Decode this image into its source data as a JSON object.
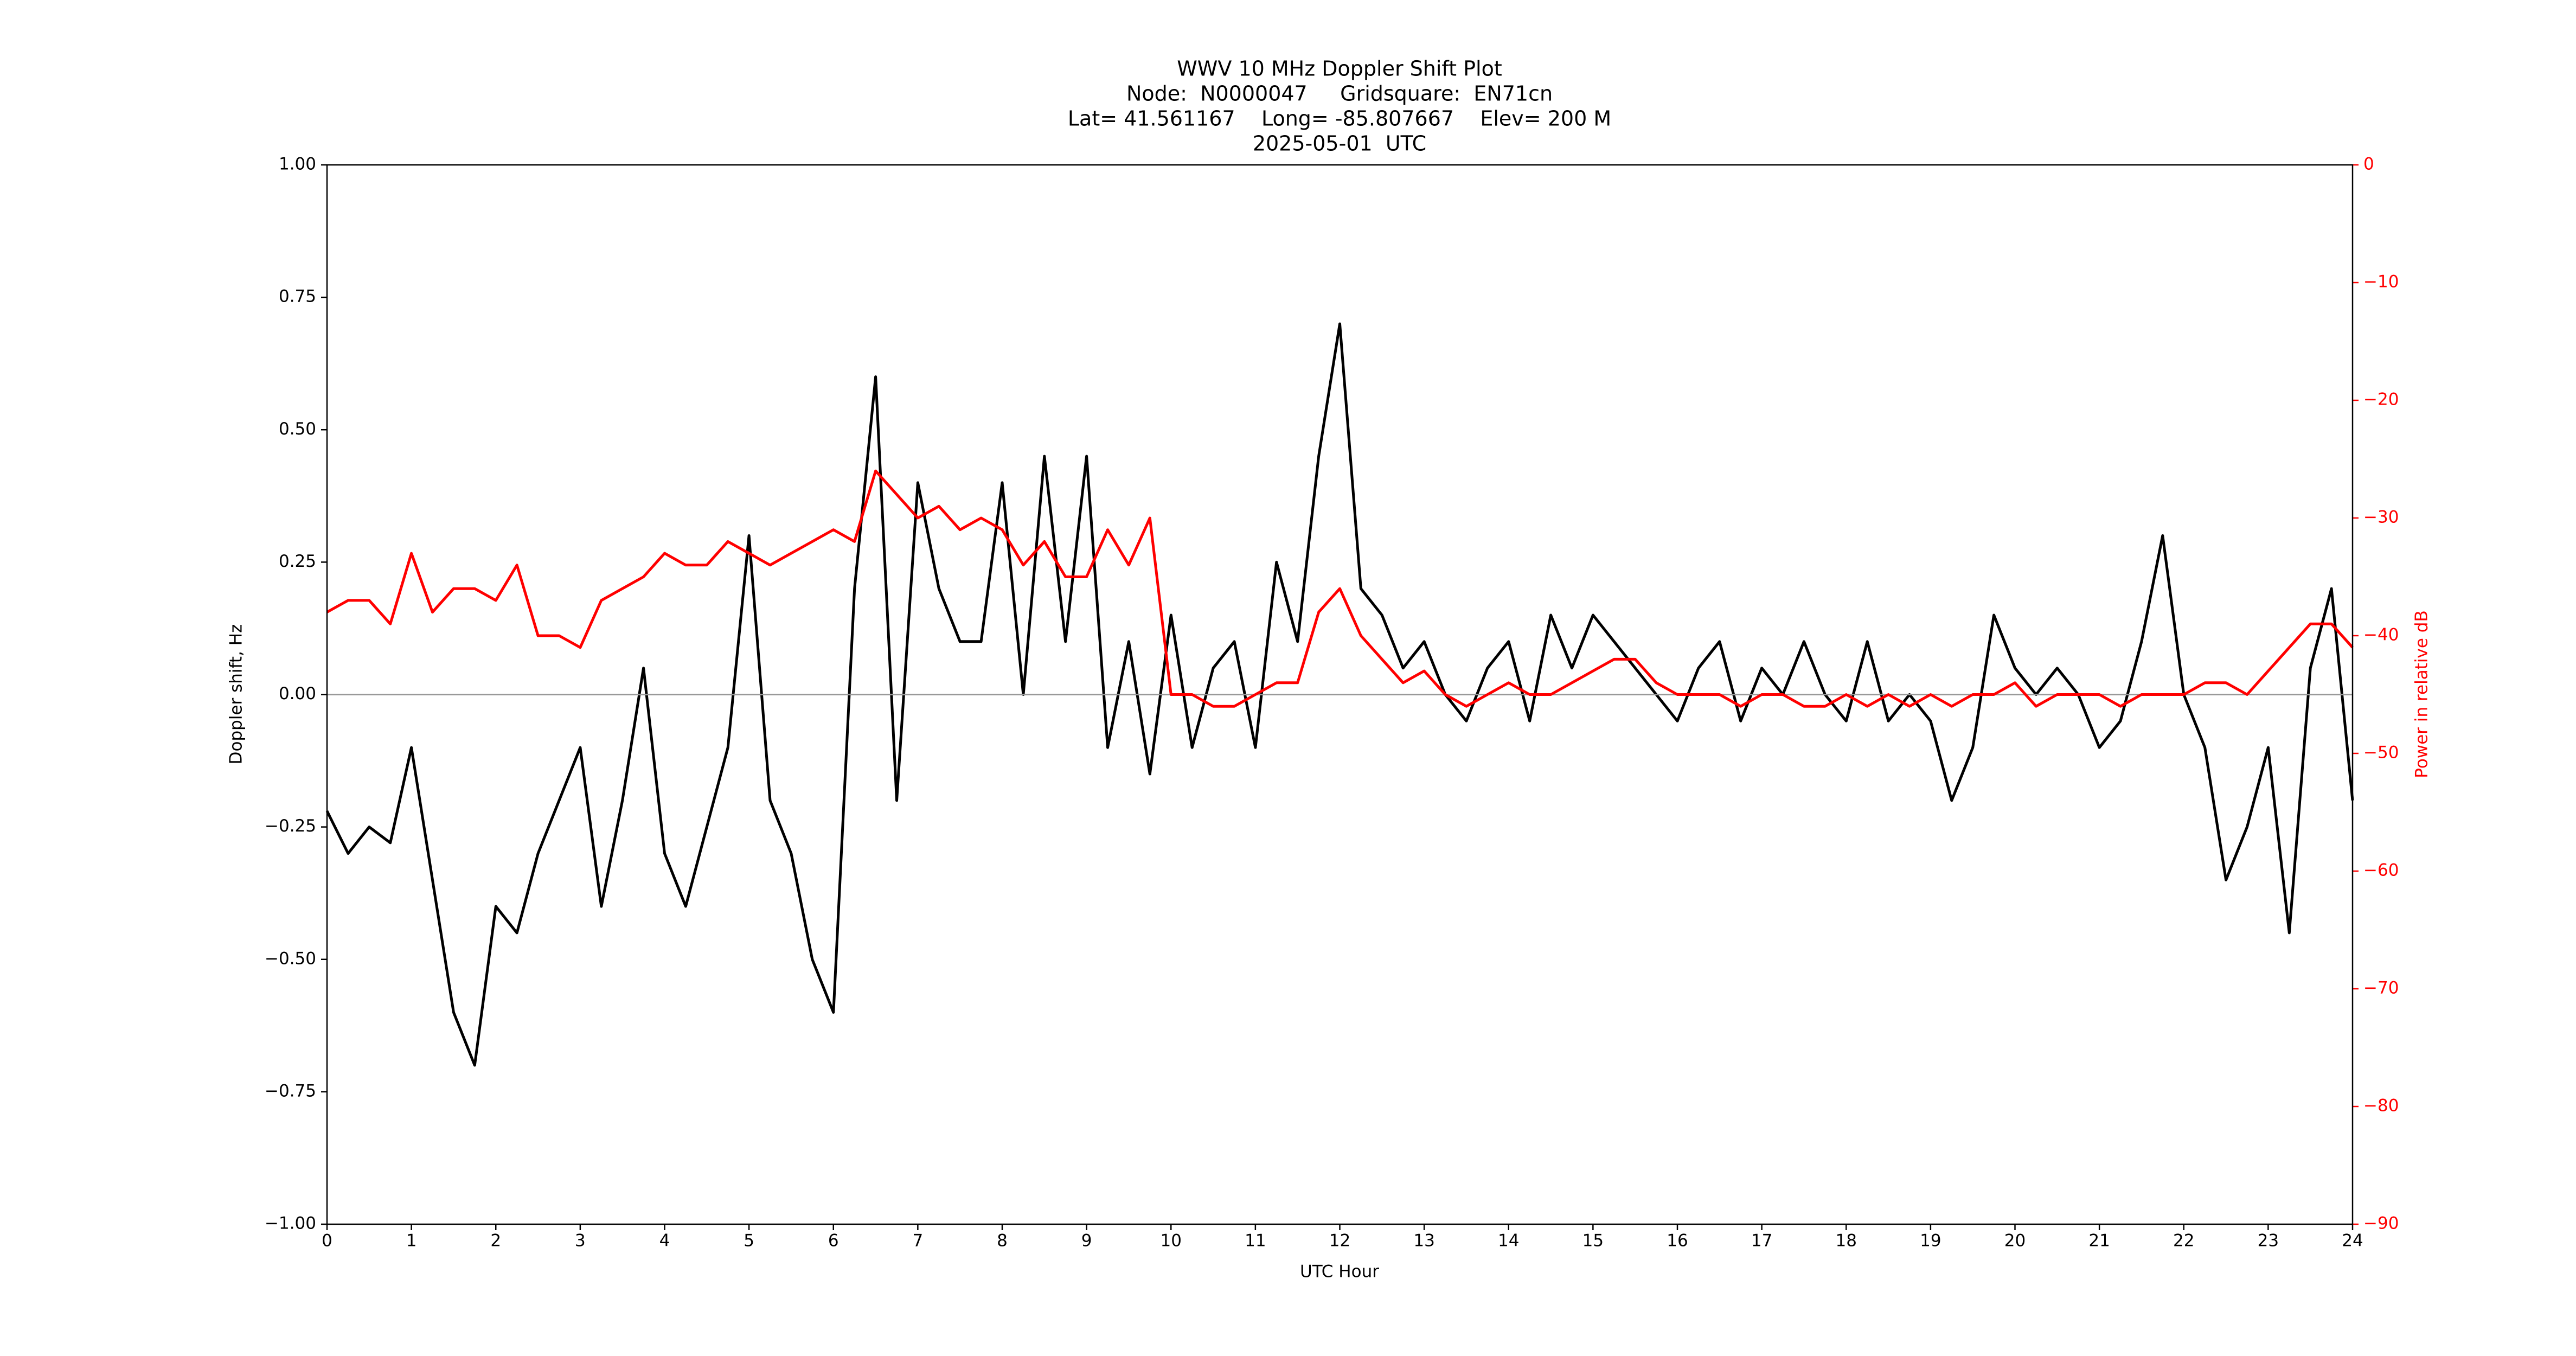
{
  "chart_data": {
    "type": "line",
    "title": "WWV 10 MHz Doppler Shift Plot",
    "subtitle": [
      "Node:  N0000047     Gridsquare:  EN71cn",
      "Lat= 41.561167    Long= -85.807667    Elev= 200 M",
      "2025-05-01  UTC"
    ],
    "xlabel": "UTC Hour",
    "ylabel": "Doppler shift, Hz",
    "y2label": "Power in relative dB",
    "zero_line": true,
    "zero_line_color": "#999999",
    "y2_color": "#ff0000",
    "x": [
      0,
      0.25,
      0.5,
      0.75,
      1,
      1.25,
      1.5,
      1.75,
      2,
      2.25,
      2.5,
      2.75,
      3,
      3.25,
      3.5,
      3.75,
      4,
      4.25,
      4.5,
      4.75,
      5,
      5.25,
      5.5,
      5.75,
      6,
      6.25,
      6.5,
      6.75,
      7,
      7.25,
      7.5,
      7.75,
      8,
      8.25,
      8.5,
      8.75,
      9,
      9.25,
      9.5,
      9.75,
      10,
      10.25,
      10.5,
      10.75,
      11,
      11.25,
      11.5,
      11.75,
      12,
      12.25,
      12.5,
      12.75,
      13,
      13.25,
      13.5,
      13.75,
      14,
      14.25,
      14.5,
      14.75,
      15,
      15.25,
      15.5,
      15.75,
      16,
      16.25,
      16.5,
      16.75,
      17,
      17.25,
      17.5,
      17.75,
      18,
      18.25,
      18.5,
      18.75,
      19,
      19.25,
      19.5,
      19.75,
      20,
      20.25,
      20.5,
      20.75,
      21,
      21.25,
      21.5,
      21.75,
      22,
      22.25,
      22.5,
      22.75,
      23,
      23.25,
      23.5,
      23.75,
      24
    ],
    "series": [
      {
        "color": "#000000",
        "values": [
          -0.22,
          -0.3,
          -0.25,
          -0.28,
          -0.1,
          -0.35,
          -0.6,
          -0.7,
          -0.4,
          -0.45,
          -0.3,
          -0.2,
          -0.1,
          -0.4,
          -0.2,
          0.05,
          -0.3,
          -0.4,
          -0.25,
          -0.1,
          0.3,
          -0.2,
          -0.3,
          -0.5,
          -0.6,
          0.2,
          0.6,
          -0.2,
          0.4,
          0.2,
          0.1,
          0.1,
          0.4,
          0.0,
          0.45,
          0.1,
          0.45,
          -0.1,
          0.1,
          -0.15,
          0.15,
          -0.1,
          0.05,
          0.1,
          -0.1,
          0.25,
          0.1,
          0.45,
          0.7,
          0.2,
          0.15,
          0.05,
          0.1,
          0.0,
          -0.05,
          0.05,
          0.1,
          -0.05,
          0.15,
          0.05,
          0.15,
          0.1,
          0.05,
          0.0,
          -0.05,
          0.05,
          0.1,
          -0.05,
          0.05,
          0.0,
          0.1,
          0.0,
          -0.05,
          0.1,
          -0.05,
          0.0,
          -0.05,
          -0.2,
          -0.1,
          0.15,
          0.05,
          0.0,
          0.05,
          0.0,
          -0.1,
          -0.05,
          0.1,
          0.3,
          0.0,
          -0.1,
          -0.35,
          -0.25,
          -0.1,
          -0.45,
          0.05,
          0.2,
          -0.2
        ]
      },
      {
        "color": "#ff0000",
        "axis": "y2",
        "values": [
          -38,
          -37,
          -37,
          -39,
          -33,
          -38,
          -36,
          -36,
          -37,
          -34,
          -40,
          -40,
          -41,
          -37,
          -36,
          -35,
          -33,
          -34,
          -34,
          -32,
          -33,
          -34,
          -33,
          -32,
          -31,
          -32,
          -26,
          -28,
          -30,
          -29,
          -31,
          -30,
          -31,
          -34,
          -32,
          -35,
          -35,
          -31,
          -34,
          -30,
          -45,
          -45,
          -46,
          -46,
          -45,
          -44,
          -44,
          -38,
          -36,
          -40,
          -42,
          -44,
          -43,
          -45,
          -46,
          -45,
          -44,
          -45,
          -45,
          -44,
          -43,
          -42,
          -42,
          -44,
          -45,
          -45,
          -45,
          -46,
          -45,
          -45,
          -46,
          -46,
          -45,
          -46,
          -45,
          -46,
          -45,
          -46,
          -45,
          -45,
          -44,
          -46,
          -45,
          -45,
          -45,
          -46,
          -45,
          -45,
          -45,
          -44,
          -44,
          -45,
          -43,
          -41,
          -39,
          -39,
          -41
        ]
      }
    ],
    "xlim": [
      0,
      24
    ],
    "xticks": [
      0,
      1,
      2,
      3,
      4,
      5,
      6,
      7,
      8,
      9,
      10,
      11,
      12,
      13,
      14,
      15,
      16,
      17,
      18,
      19,
      20,
      21,
      22,
      23,
      24
    ],
    "ylim": [
      -1,
      1
    ],
    "yticks": [
      {
        "value": -1,
        "label": "−1.00"
      },
      {
        "value": -0.75,
        "label": "−0.75"
      },
      {
        "value": -0.5,
        "label": "−0.50"
      },
      {
        "value": -0.25,
        "label": "−0.25"
      },
      {
        "value": 0,
        "label": "0.00"
      },
      {
        "value": 0.25,
        "label": "0.25"
      },
      {
        "value": 0.5,
        "label": "0.50"
      },
      {
        "value": 0.75,
        "label": "0.75"
      },
      {
        "value": 1,
        "label": "1.00"
      }
    ],
    "y2lim": [
      -90,
      0
    ],
    "y2ticks": [
      {
        "value": -90,
        "label": "−90"
      },
      {
        "value": -80,
        "label": "−80"
      },
      {
        "value": -70,
        "label": "−70"
      },
      {
        "value": -60,
        "label": "−60"
      },
      {
        "value": -50,
        "label": "−50"
      },
      {
        "value": -40,
        "label": "−40"
      },
      {
        "value": -30,
        "label": "−30"
      },
      {
        "value": -20,
        "label": "−20"
      },
      {
        "value": -10,
        "label": "−10"
      },
      0
    ]
  }
}
